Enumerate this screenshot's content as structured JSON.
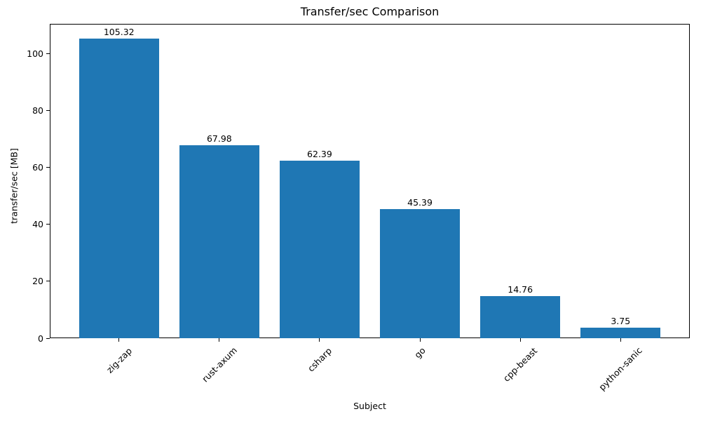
{
  "chart_data": {
    "type": "bar",
    "title": "Transfer/sec Comparison",
    "xlabel": "Subject",
    "ylabel": "transfer/sec [MB]",
    "categories": [
      "zig-zap",
      "rust-axum",
      "csharp",
      "go",
      "cpp-beast",
      "python-sanic"
    ],
    "values": [
      105.32,
      67.98,
      62.39,
      45.39,
      14.76,
      3.75
    ],
    "bar_labels": [
      "105.32",
      "67.98",
      "62.39",
      "45.39",
      "14.76",
      "3.75"
    ],
    "yticks": [
      0,
      20,
      40,
      60,
      80,
      100
    ],
    "ylim": [
      0,
      110.6
    ],
    "bar_color": "#1f77b4",
    "background_color": "#ffffff",
    "grid": false,
    "legend": "none",
    "x_tick_rotation_deg": 45
  }
}
